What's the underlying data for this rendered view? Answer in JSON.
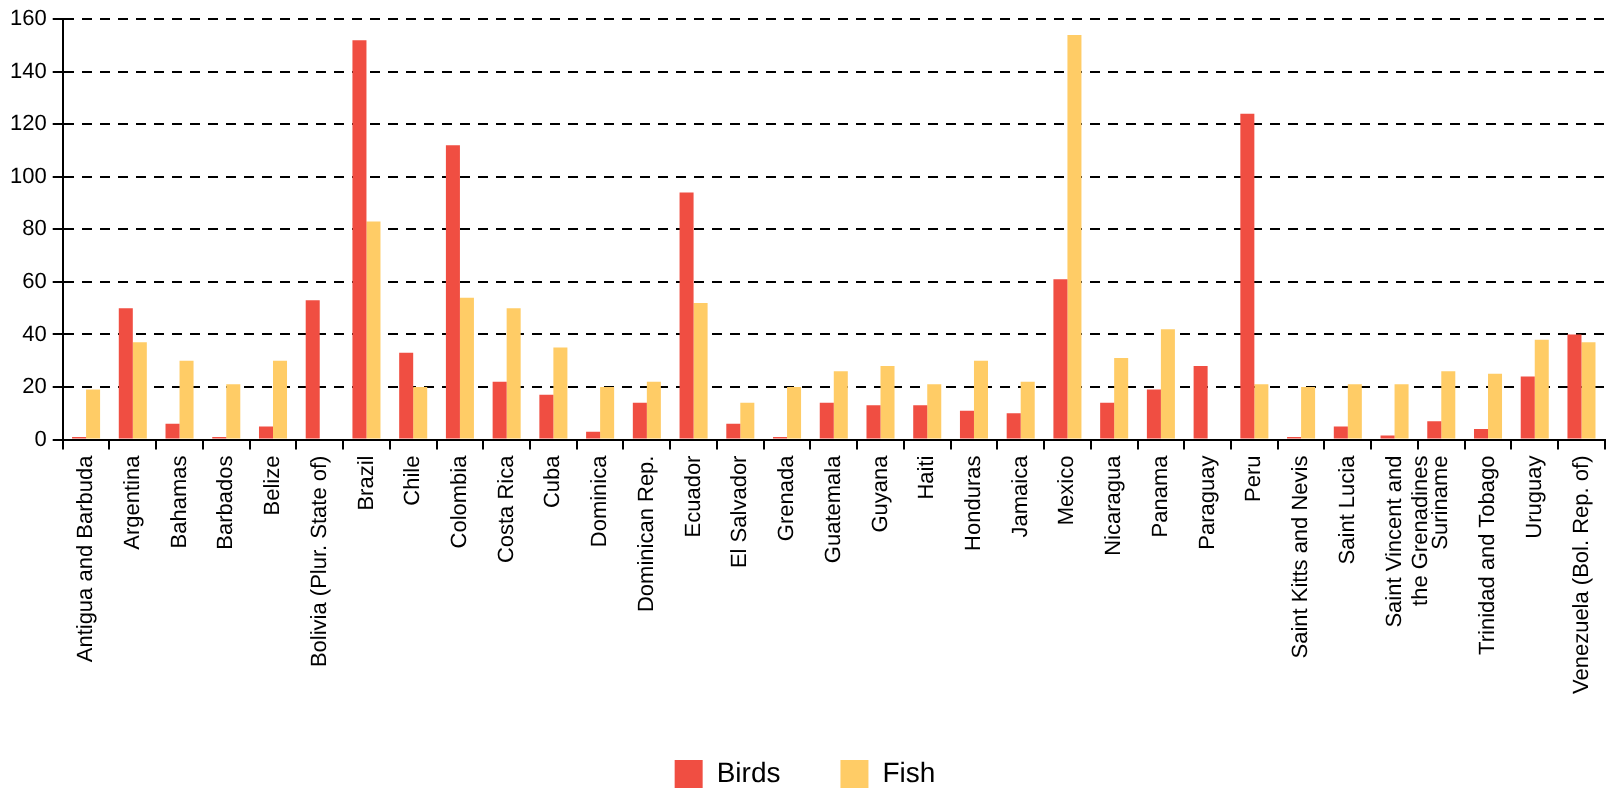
{
  "chart_data": {
    "type": "bar",
    "categories": [
      "Antigua and Barbuda",
      "Argentina",
      "Bahamas",
      "Barbados",
      "Belize",
      "Bolivia (Plur. State of)",
      "Brazil",
      "Chile",
      "Colombia",
      "Costa Rica",
      "Cuba",
      "Dominica",
      "Dominican Rep.",
      "Ecuador",
      "El Salvador",
      "Grenada",
      "Guatemala",
      "Guyana",
      "Haiti",
      "Honduras",
      "Jamaica",
      "Mexico",
      "Nicaragua",
      "Panama",
      "Paraguay",
      "Peru",
      "Saint Kitts and Nevis",
      "Saint Lucia",
      "Saint Vincent and the Grenadines",
      "Suriname",
      "Trinidad and Tobago",
      "Uruguay",
      "Venezuela (Bol. Rep. of)"
    ],
    "series": [
      {
        "name": "Birds",
        "color": "#f04e42",
        "values": [
          1,
          50,
          6,
          1,
          5,
          53,
          152,
          33,
          112,
          22,
          17,
          3,
          14,
          94,
          6,
          1,
          14,
          13,
          13,
          11,
          10,
          61,
          14,
          19,
          28,
          124,
          1,
          5,
          1.5,
          7,
          4,
          24,
          40
        ]
      },
      {
        "name": "Fish",
        "color": "#ffcc66",
        "values": [
          19,
          37,
          30,
          21,
          30,
          0,
          83,
          20,
          54,
          50,
          35,
          20,
          22,
          52,
          14,
          20,
          26,
          28,
          21,
          30,
          22,
          154,
          31,
          42,
          0,
          21,
          20,
          21,
          21,
          26,
          25,
          38,
          37
        ]
      }
    ],
    "ylim": [
      0,
      160
    ],
    "yticks": [
      0,
      20,
      40,
      60,
      80,
      100,
      120,
      140,
      160
    ],
    "grid": "y",
    "legend": "bottom"
  }
}
